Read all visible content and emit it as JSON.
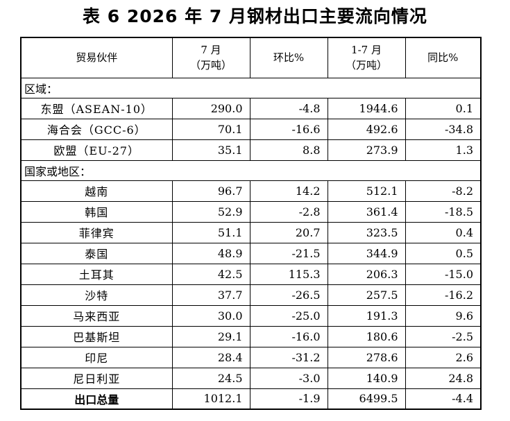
{
  "title": "表 6 2026 年 7 月钢材出口主要流向情况",
  "header": {
    "partner": "贸易伙伴",
    "july_line1": "7 月",
    "july_line2": "（万吨）",
    "mom": "环比%",
    "ytd_line1": "1-7 月",
    "ytd_line2": "（万吨）",
    "yoy": "同比%"
  },
  "sections": {
    "regions": "区域：",
    "countries": "国家或地区："
  },
  "regions": [
    {
      "name": "东盟（ASEAN-10）",
      "july": "290.0",
      "mom": "-4.8",
      "ytd": "1944.6",
      "yoy": "0.1"
    },
    {
      "name": "海合会（GCC-6）",
      "july": "70.1",
      "mom": "-16.6",
      "ytd": "492.6",
      "yoy": "-34.8"
    },
    {
      "name": "欧盟（EU-27）",
      "july": "35.1",
      "mom": "8.8",
      "ytd": "273.9",
      "yoy": "1.3"
    }
  ],
  "countries": [
    {
      "name": "越南",
      "july": "96.7",
      "mom": "14.2",
      "ytd": "512.1",
      "yoy": "-8.2"
    },
    {
      "name": "韩国",
      "july": "52.9",
      "mom": "-2.8",
      "ytd": "361.4",
      "yoy": "-18.5"
    },
    {
      "name": "菲律宾",
      "july": "51.1",
      "mom": "20.7",
      "ytd": "323.5",
      "yoy": "0.4"
    },
    {
      "name": "泰国",
      "july": "48.9",
      "mom": "-21.5",
      "ytd": "344.9",
      "yoy": "0.5"
    },
    {
      "name": "土耳其",
      "july": "42.5",
      "mom": "115.3",
      "ytd": "206.3",
      "yoy": "-15.0"
    },
    {
      "name": "沙特",
      "july": "37.7",
      "mom": "-26.5",
      "ytd": "257.5",
      "yoy": "-16.2"
    },
    {
      "name": "马来西亚",
      "july": "30.0",
      "mom": "-25.0",
      "ytd": "191.3",
      "yoy": "9.6"
    },
    {
      "name": "巴基斯坦",
      "july": "29.1",
      "mom": "-16.0",
      "ytd": "180.6",
      "yoy": "-2.5"
    },
    {
      "name": "印尼",
      "july": "28.4",
      "mom": "-31.2",
      "ytd": "278.6",
      "yoy": "2.6"
    },
    {
      "name": "尼日利亚",
      "july": "24.5",
      "mom": "-3.0",
      "ytd": "140.9",
      "yoy": "24.8"
    }
  ],
  "total": {
    "name": "出口总量",
    "july": "1012.1",
    "mom": "-1.9",
    "ytd": "6499.5",
    "yoy": "-4.4"
  }
}
